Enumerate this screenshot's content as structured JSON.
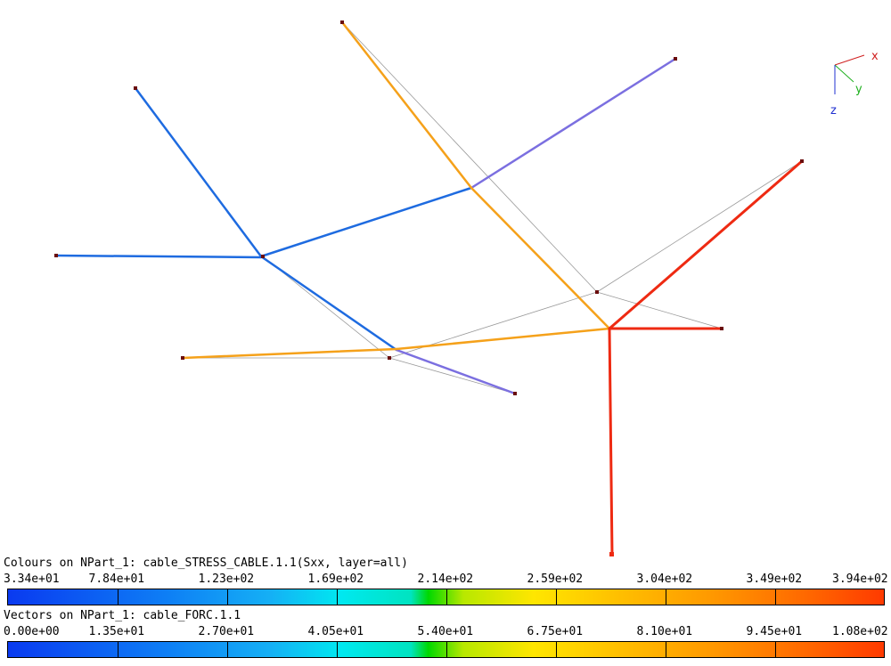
{
  "viewport": {
    "axis_triad": {
      "x_label": "x",
      "y_label": "y",
      "z_label": "z"
    },
    "colors": {
      "blue": "#1e6be0",
      "purple": "#7b6fe0",
      "orange": "#f5a11a",
      "red": "#ee2a12",
      "ghost": "#9a9a9a",
      "node": "#6a0d0d"
    }
  },
  "legend_colours": {
    "title": "Colours on NPart_1: cable_STRESS_CABLE.1.1(Sxx, layer=all)",
    "ticks": [
      "3.34e+01",
      "7.84e+01",
      "1.23e+02",
      "1.69e+02",
      "2.14e+02",
      "2.59e+02",
      "3.04e+02",
      "3.49e+02",
      "3.94e+02"
    ]
  },
  "legend_vectors": {
    "title": "Vectors on NPart_1: cable_FORC.1.1",
    "ticks": [
      "0.00e+00",
      "1.35e+01",
      "2.70e+01",
      "4.05e+01",
      "5.40e+01",
      "6.75e+01",
      "8.10e+01",
      "9.45e+01",
      "1.08e+02"
    ]
  }
}
